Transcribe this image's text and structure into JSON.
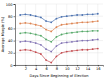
{
  "chart_data": {
    "type": "line",
    "x_label": "Days Since Beginning of Election",
    "y_label": "Average Margin (%)",
    "x": [
      1,
      2,
      3,
      4,
      5,
      6,
      7,
      8,
      9,
      10,
      11,
      12,
      13,
      14,
      15,
      16
    ],
    "xlim": [
      0,
      17
    ],
    "xticks": [
      2,
      4,
      6,
      8,
      10,
      12,
      14,
      16
    ],
    "ylim": [
      0,
      100
    ],
    "yticks": [
      0,
      20,
      40,
      60,
      80,
      100
    ],
    "grid": true,
    "series": [
      {
        "color": "#4c72b0",
        "marker": "o",
        "values": [
          82,
          83,
          82,
          80,
          78,
          72,
          70,
          76,
          79,
          80,
          81,
          82,
          82,
          83,
          83,
          84
        ]
      },
      {
        "color": "#dd8452",
        "marker": "o",
        "values": [
          68,
          69,
          68,
          66,
          64,
          58,
          55,
          62,
          66,
          67,
          68,
          69,
          70,
          70,
          71,
          72
        ]
      },
      {
        "color": "#55a868",
        "marker": "o",
        "values": [
          52,
          53,
          52,
          50,
          48,
          42,
          38,
          46,
          50,
          52,
          53,
          54,
          55,
          55,
          56,
          56
        ]
      },
      {
        "color": "#8172b3",
        "marker": "o",
        "values": [
          38,
          39,
          38,
          36,
          33,
          26,
          22,
          31,
          36,
          37,
          38,
          39,
          40,
          40,
          41,
          42
        ]
      },
      {
        "color": "#c44e52",
        "marker": "o",
        "values": [
          24,
          25,
          24,
          21,
          18,
          8,
          4,
          14,
          20,
          22,
          23,
          24,
          25,
          25,
          26,
          27
        ]
      }
    ]
  }
}
